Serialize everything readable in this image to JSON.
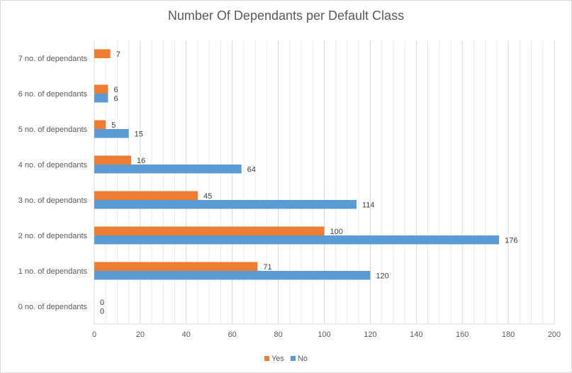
{
  "chart_data": {
    "type": "bar",
    "orientation": "horizontal",
    "title": "Number Of Dependants per Default Class",
    "xlabel": "",
    "ylabel": "",
    "categories": [
      "0 no. of dependants",
      "1 no. of dependants",
      "2 no. of dependants",
      "3 no. of dependants",
      "4 no. of dependants",
      "5 no. of dependants",
      "6 no. of dependants",
      "7 no. of dependants"
    ],
    "series": [
      {
        "name": "Yes",
        "color": "#ed7d31",
        "values": [
          0,
          71,
          100,
          45,
          16,
          5,
          6,
          7
        ]
      },
      {
        "name": "No",
        "color": "#5b9bd5",
        "values": [
          0,
          120,
          176,
          114,
          64,
          15,
          6,
          null
        ]
      }
    ],
    "xlim": [
      0,
      200
    ],
    "xticks": [
      0,
      20,
      40,
      60,
      80,
      100,
      120,
      140,
      160,
      180,
      200
    ],
    "grid": "vertical",
    "legend_position": "bottom"
  }
}
